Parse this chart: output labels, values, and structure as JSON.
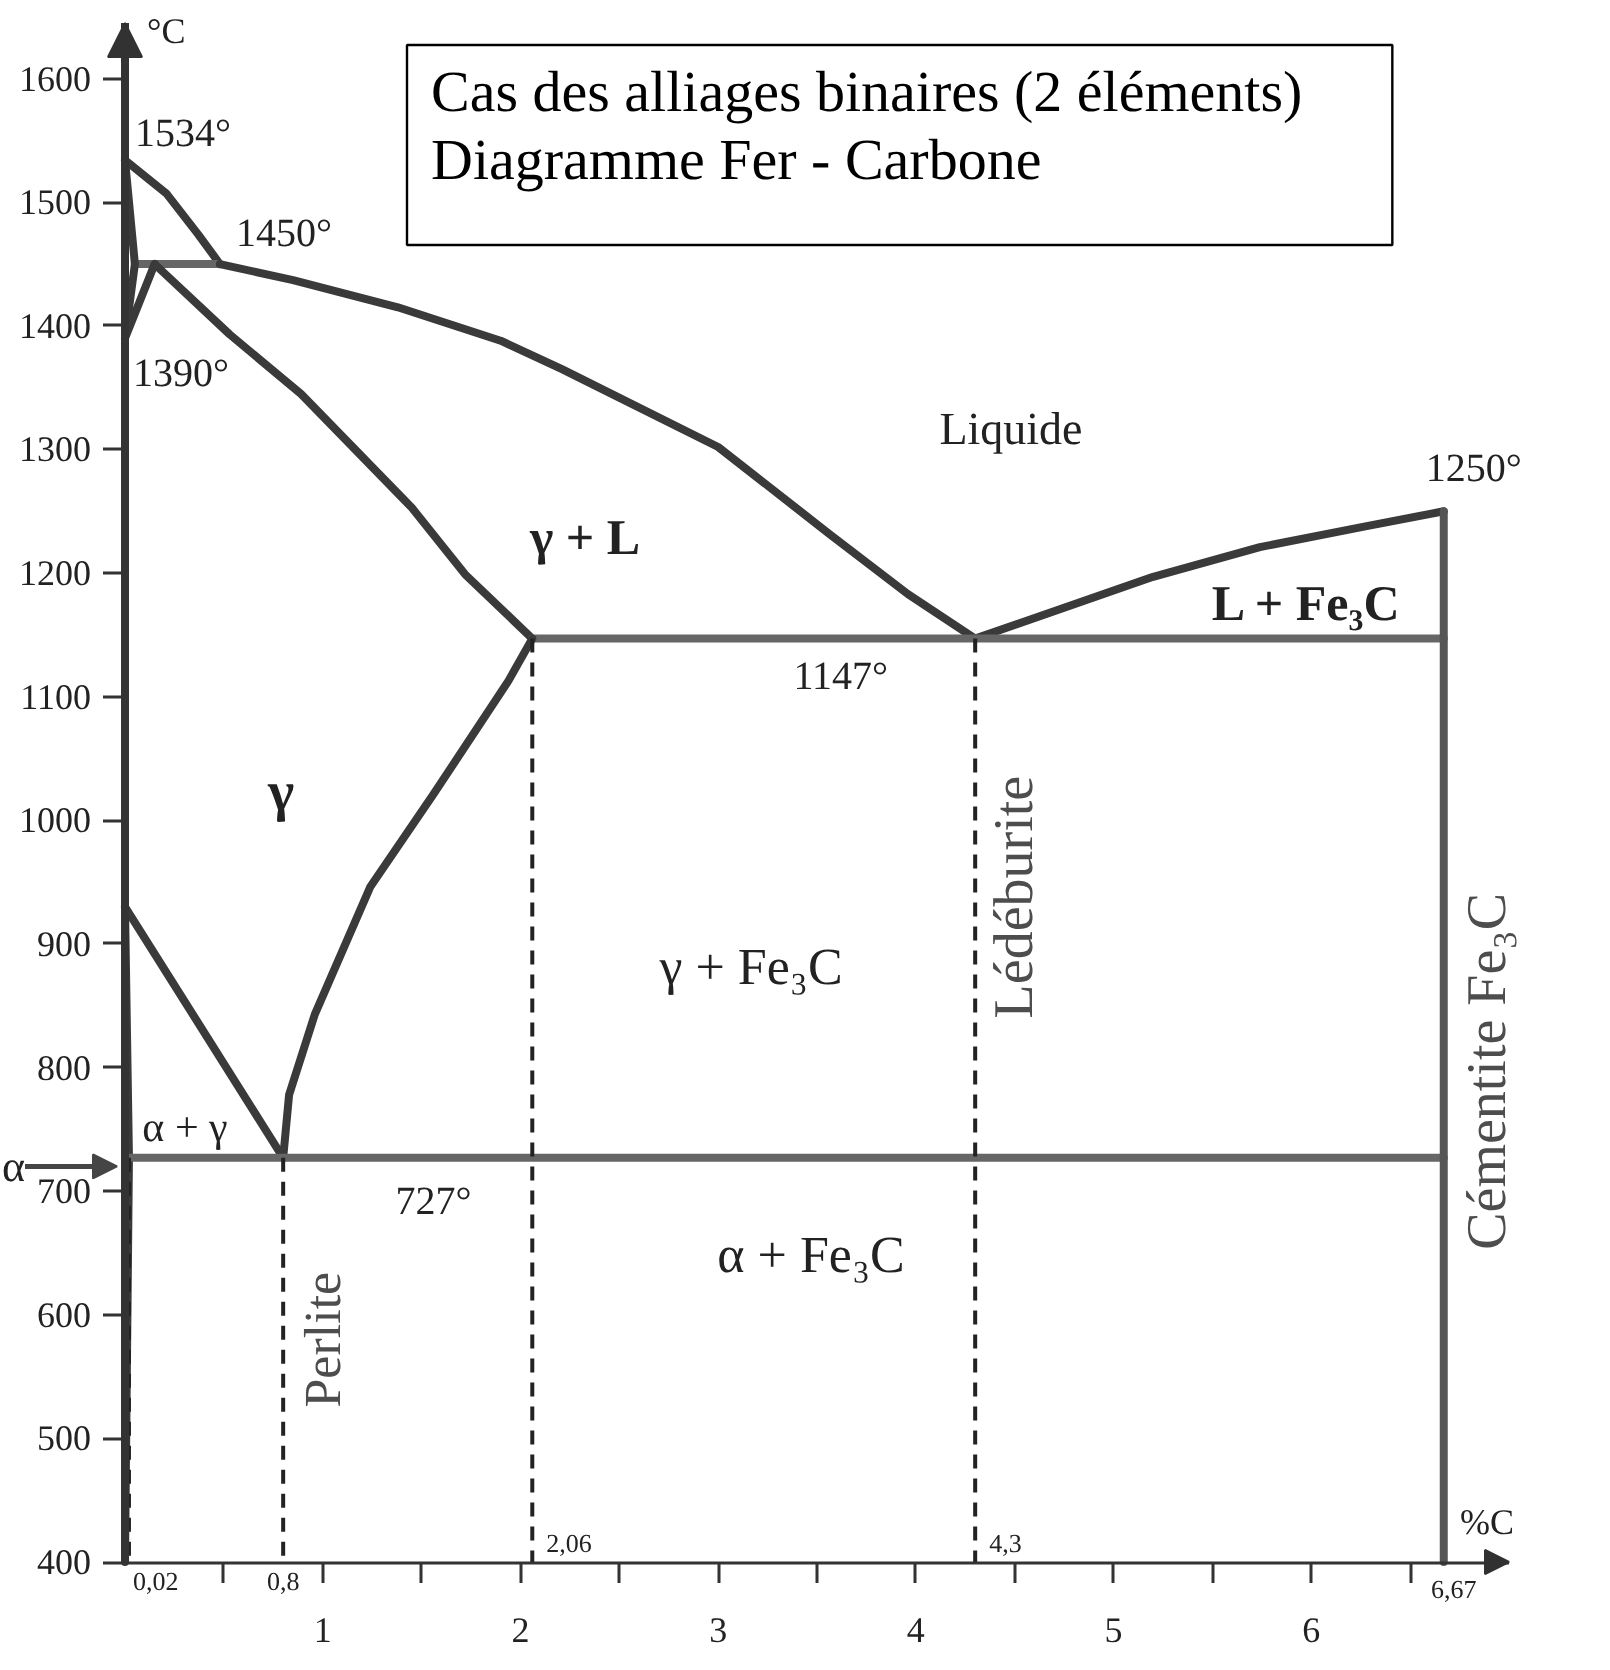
{
  "chart_data": {
    "type": "line",
    "title": "Cas des alliages binaires (2 éléments)",
    "subtitle": "Diagramme Fer - Carbone",
    "xlabel": "%C",
    "ylabel": "°C",
    "xlim": [
      0,
      7.0
    ],
    "ylim": [
      400,
      1645
    ],
    "xticks": [
      {
        "value": 0.5,
        "label": null
      },
      1,
      {
        "value": 1.5,
        "label": null
      },
      2,
      {
        "value": 2.5,
        "label": null
      },
      3,
      {
        "value": 3.5,
        "label": null
      },
      4,
      {
        "value": 4.5,
        "label": null
      },
      5,
      {
        "value": 5.5,
        "label": null
      },
      6,
      {
        "value": 6.5,
        "label": null
      }
    ],
    "yticks": [
      400,
      500,
      600,
      700,
      800,
      900,
      1000,
      1100,
      1200,
      1300,
      1400,
      1500,
      1600
    ],
    "series": [
      {
        "color": "#3a3a3a",
        "x": [
          0,
          0.21,
          0.37,
          0.48
        ],
        "values": [
          1534,
          1507,
          1474,
          1450
        ]
      },
      {
        "color": "#666666",
        "x": [
          0.05,
          0.48
        ],
        "values": [
          1450,
          1450
        ]
      },
      {
        "color": "#3a3a3a",
        "x": [
          0,
          0.05,
          0
        ],
        "values": [
          1534,
          1450,
          1390
        ]
      },
      {
        "color": "#3a3a3a",
        "x": [
          0.15,
          0
        ],
        "values": [
          1450,
          1390
        ]
      },
      {
        "color": "#3a3a3a",
        "x": [
          0.48,
          0.85,
          1.38,
          1.9,
          2.21,
          3.0,
          3.56,
          3.96,
          4.3
        ],
        "values": [
          1450,
          1437,
          1415,
          1388,
          1365,
          1302,
          1232,
          1183,
          1147
        ]
      },
      {
        "color": "#3a3a3a",
        "x": [
          4.3,
          5.2,
          5.74,
          6.28,
          6.67
        ],
        "values": [
          1147,
          1197,
          1221,
          1238,
          1250
        ]
      },
      {
        "color": "#3a3a3a",
        "x": [
          0.15,
          0.53,
          0.89,
          1.45,
          1.72,
          2.06
        ],
        "values": [
          1450,
          1393,
          1345,
          1253,
          1199,
          1147
        ]
      },
      {
        "color": "#666666",
        "x": [
          2.06,
          6.67
        ],
        "values": [
          1147,
          1147
        ]
      },
      {
        "color": "#3a3a3a",
        "x": [
          0,
          0.8
        ],
        "values": [
          930,
          727
        ]
      },
      {
        "color": "#3a3a3a",
        "x": [
          0.8,
          0.83,
          0.96,
          1.24,
          1.56,
          1.94,
          2.06
        ],
        "values": [
          727,
          778,
          843,
          946,
          1021,
          1113,
          1147
        ]
      },
      {
        "color": "#3a3a3a",
        "x": [
          0,
          0.02,
          0
        ],
        "values": [
          930,
          727,
          400
        ]
      },
      {
        "color": "#666666",
        "x": [
          0.02,
          6.67
        ],
        "values": [
          727,
          727
        ]
      },
      {
        "name": "Cémentite Fe₃C",
        "color": "#555555",
        "x": [
          6.67,
          6.67
        ],
        "values": [
          400,
          1250
        ]
      },
      {
        "color": "#222222",
        "line_style": "dashed",
        "x": [
          0.02,
          0.02
        ],
        "values": [
          727,
          400
        ]
      },
      {
        "name": "Perlite",
        "color": "#222222",
        "line_style": "dashed",
        "x": [
          0.8,
          0.8
        ],
        "values": [
          727,
          400
        ]
      },
      {
        "color": "#222222",
        "line_style": "dashed",
        "x": [
          2.06,
          2.06
        ],
        "values": [
          1147,
          400
        ]
      },
      {
        "name": "Lédéburite",
        "color": "#222222",
        "line_style": "dashed",
        "x": [
          4.3,
          4.3
        ],
        "values": [
          1147,
          400
        ]
      }
    ],
    "annotations": [
      {
        "text": "1534°",
        "x": 0,
        "y": 1534
      },
      {
        "text": "1450°",
        "x": 0.48,
        "y": 1450
      },
      {
        "text": "1390°",
        "x": 0,
        "y": 1390
      },
      {
        "text": "1147°",
        "x": 3.62,
        "y": 1147
      },
      {
        "text": "1250°",
        "x": 6.67,
        "y": 1250
      },
      {
        "text": "727°",
        "x": 1.56,
        "y": 727
      },
      "Liquide",
      "γ + L",
      "L + Fe₃C",
      "γ",
      "γ + Fe₃C",
      "α + γ",
      "α + Fe₃C",
      {
        "text": "α",
        "x": 0,
        "y": 720
      },
      {
        "text": "0,02",
        "x": 0.02,
        "y": 400
      },
      {
        "text": "0,8",
        "x": 0.8,
        "y": 400
      },
      {
        "text": "2,06",
        "x": 2.06,
        "y": 400
      },
      {
        "text": "4,3",
        "x": 4.3,
        "y": 400
      },
      {
        "text": "6,67",
        "x": 6.67,
        "y": 400
      }
    ]
  }
}
